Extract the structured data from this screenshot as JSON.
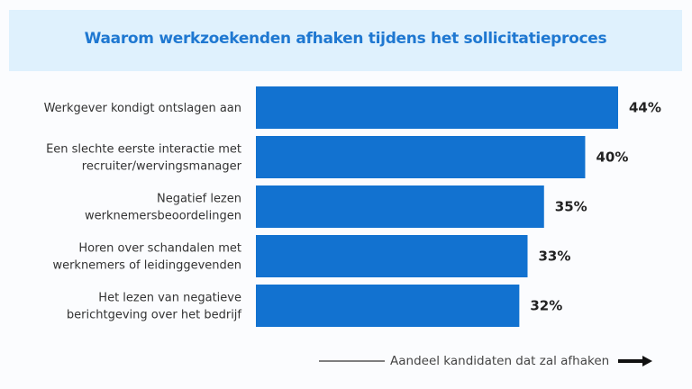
{
  "chart_data": {
    "type": "bar",
    "orientation": "horizontal",
    "title": "Waarom werkzoekenden afhaken tijdens het sollicitatieproces",
    "categories": [
      [
        "Werkgever kondigt ontslagen aan"
      ],
      [
        "Een slechte eerste interactie met",
        "recruiter/wervingsmanager"
      ],
      [
        "Negatief lezen",
        "werknemersbeoordelingen"
      ],
      [
        "Horen over schandalen met",
        "werknemers of leidinggevenden"
      ],
      [
        "Het lezen van negatieve",
        "berichtgeving over het bedrijf"
      ]
    ],
    "values": [
      44,
      40,
      35,
      33,
      32
    ],
    "value_labels": [
      "44%",
      "40%",
      "35%",
      "33%",
      "32%"
    ],
    "xlabel": "Aandeel kandidaten dat zal afhaken",
    "bar_color": "#1272d0",
    "title_color": "#1f78d1",
    "header_background": "#dff1fd",
    "grid": false
  }
}
